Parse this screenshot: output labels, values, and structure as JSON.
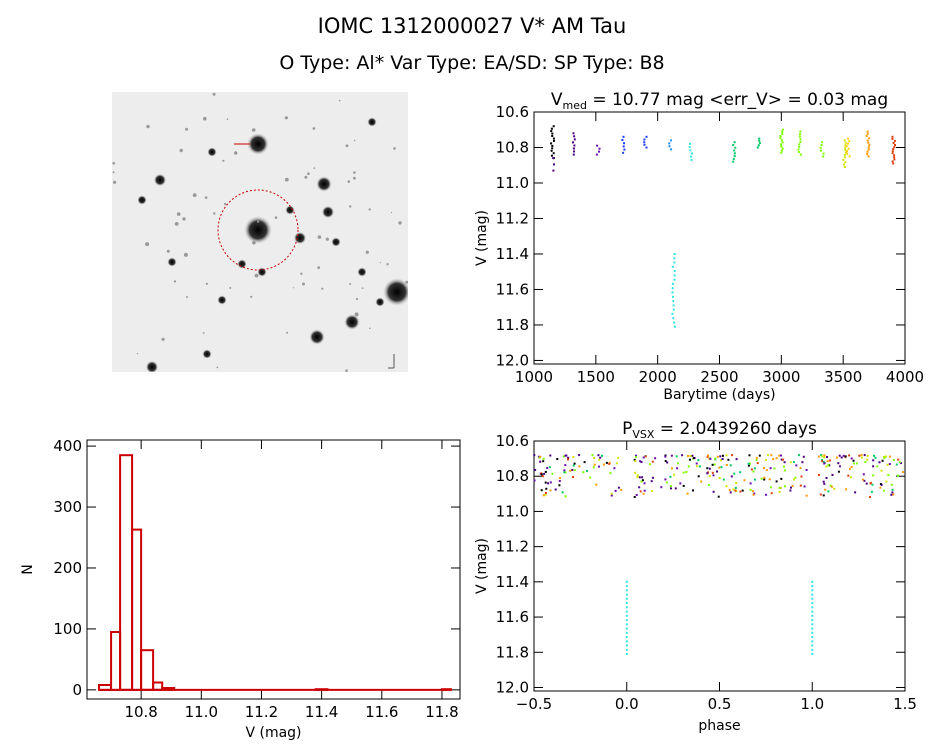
{
  "header": {
    "title": "IOMC 1312000027   V* AM Tau",
    "subtitle": "O Type: Al*  Var Type: EA/SD:  SP Type: B8"
  },
  "colors": {
    "lc_palette": [
      "#4b0082",
      "#6a0dad",
      "#1e3cff",
      "#1e90ff",
      "#00bfff",
      "#2ee6e6",
      "#00c864",
      "#7cfc00",
      "#d4e600",
      "#ffd000",
      "#ff9a00",
      "#e04010",
      "#000000"
    ],
    "hist": "#cc0000",
    "aperture": "#cc0000"
  },
  "chart_data": [
    {
      "id": "lightcurve",
      "type": "scatter",
      "title": "V_med = 10.77 mag <err_V> = 0.03 mag",
      "title_parts": {
        "sym": "V",
        "sub": "med",
        "rest": " = 10.77 mag <err_V> = 0.03 mag"
      },
      "xlabel": "Barytime (days)",
      "ylabel": "V (mag)",
      "xlim": [
        1000,
        4000
      ],
      "ylim": [
        12.02,
        10.6
      ],
      "xticks": [
        1000,
        1500,
        2000,
        2500,
        3000,
        3500,
        4000
      ],
      "yticks": [
        10.6,
        10.8,
        11.0,
        11.2,
        11.4,
        11.6,
        11.8,
        12.0
      ],
      "ytick_labels": [
        "10.6",
        "10.8",
        "11.0",
        "11.2",
        "11.4",
        "11.6",
        "11.8",
        "12.0"
      ],
      "series": [
        {
          "x": 1150,
          "ymin": 10.68,
          "ymax": 10.86,
          "c": 12,
          "n": 14
        },
        {
          "x": 1150,
          "ymin": 10.86,
          "ymax": 10.93,
          "c": 0,
          "n": 3
        },
        {
          "x": 1320,
          "ymin": 10.72,
          "ymax": 10.84,
          "c": 0,
          "n": 8
        },
        {
          "x": 1520,
          "ymin": 10.79,
          "ymax": 10.84,
          "c": 1,
          "n": 4
        },
        {
          "x": 1720,
          "ymin": 10.74,
          "ymax": 10.83,
          "c": 2,
          "n": 6
        },
        {
          "x": 1900,
          "ymin": 10.74,
          "ymax": 10.8,
          "c": 2,
          "n": 5
        },
        {
          "x": 2100,
          "ymin": 10.76,
          "ymax": 10.81,
          "c": 3,
          "n": 4
        },
        {
          "x": 2130,
          "ymin": 11.4,
          "ymax": 11.81,
          "c": 5,
          "n": 18
        },
        {
          "x": 2270,
          "ymin": 10.78,
          "ymax": 10.87,
          "c": 5,
          "n": 6
        },
        {
          "x": 2620,
          "ymin": 10.77,
          "ymax": 10.88,
          "c": 6,
          "n": 8
        },
        {
          "x": 2820,
          "ymin": 10.75,
          "ymax": 10.8,
          "c": 6,
          "n": 5
        },
        {
          "x": 3000,
          "ymin": 10.7,
          "ymax": 10.83,
          "c": 7,
          "n": 12
        },
        {
          "x": 3150,
          "ymin": 10.71,
          "ymax": 10.84,
          "c": 7,
          "n": 10
        },
        {
          "x": 3330,
          "ymin": 10.77,
          "ymax": 10.85,
          "c": 7,
          "n": 6
        },
        {
          "x": 3510,
          "ymin": 10.76,
          "ymax": 10.91,
          "c": 8,
          "n": 12
        },
        {
          "x": 3540,
          "ymin": 10.75,
          "ymax": 10.85,
          "c": 9,
          "n": 8
        },
        {
          "x": 3700,
          "ymin": 10.71,
          "ymax": 10.85,
          "c": 10,
          "n": 12
        },
        {
          "x": 3910,
          "ymin": 10.74,
          "ymax": 10.89,
          "c": 11,
          "n": 14
        }
      ]
    },
    {
      "id": "histogram",
      "type": "bar",
      "title": "",
      "xlabel": "V (mag)",
      "ylabel": "N",
      "xlim": [
        10.62,
        11.86
      ],
      "ylim": [
        -15,
        410
      ],
      "xticks": [
        10.8,
        11.0,
        11.2,
        11.4,
        11.6,
        11.8
      ],
      "xtick_labels": [
        "10.8",
        "11.0",
        "11.2",
        "11.4",
        "11.6",
        "11.8"
      ],
      "yticks": [
        0,
        100,
        200,
        300,
        400
      ],
      "bin_edges": [
        10.66,
        10.7,
        10.73,
        10.77,
        10.8,
        10.84,
        10.87,
        10.91,
        10.94,
        11.38,
        11.42,
        11.8,
        11.83
      ],
      "values": [
        8,
        95,
        385,
        263,
        65,
        12,
        3,
        0,
        0,
        1,
        0,
        1
      ]
    },
    {
      "id": "phased",
      "type": "scatter",
      "title": "P_vsx = 2.0439260 days",
      "title_parts": {
        "sym": "P",
        "sub": "VSX",
        "rest": " = 2.0439260 days"
      },
      "xlabel": "phase",
      "ylabel": "V (mag)",
      "xlim": [
        -0.5,
        1.5
      ],
      "ylim": [
        12.02,
        10.6
      ],
      "period_days": 2.043926,
      "xticks": [
        -0.5,
        0.0,
        0.5,
        1.0,
        1.5
      ],
      "xtick_labels": [
        "−0.5",
        "0.0",
        "0.5",
        "1.0",
        "1.5"
      ],
      "yticks": [
        10.6,
        10.8,
        11.0,
        11.2,
        11.4,
        11.6,
        11.8,
        12.0
      ],
      "ytick_labels": [
        "10.6",
        "10.8",
        "11.0",
        "11.2",
        "11.4",
        "11.6",
        "11.8",
        "12.0"
      ],
      "eclipse": {
        "x": [
          0.0,
          1.0
        ],
        "ymin": 11.4,
        "ymax": 11.81,
        "c": 5
      },
      "band": {
        "ymin": 10.68,
        "ymax": 10.92
      }
    }
  ]
}
